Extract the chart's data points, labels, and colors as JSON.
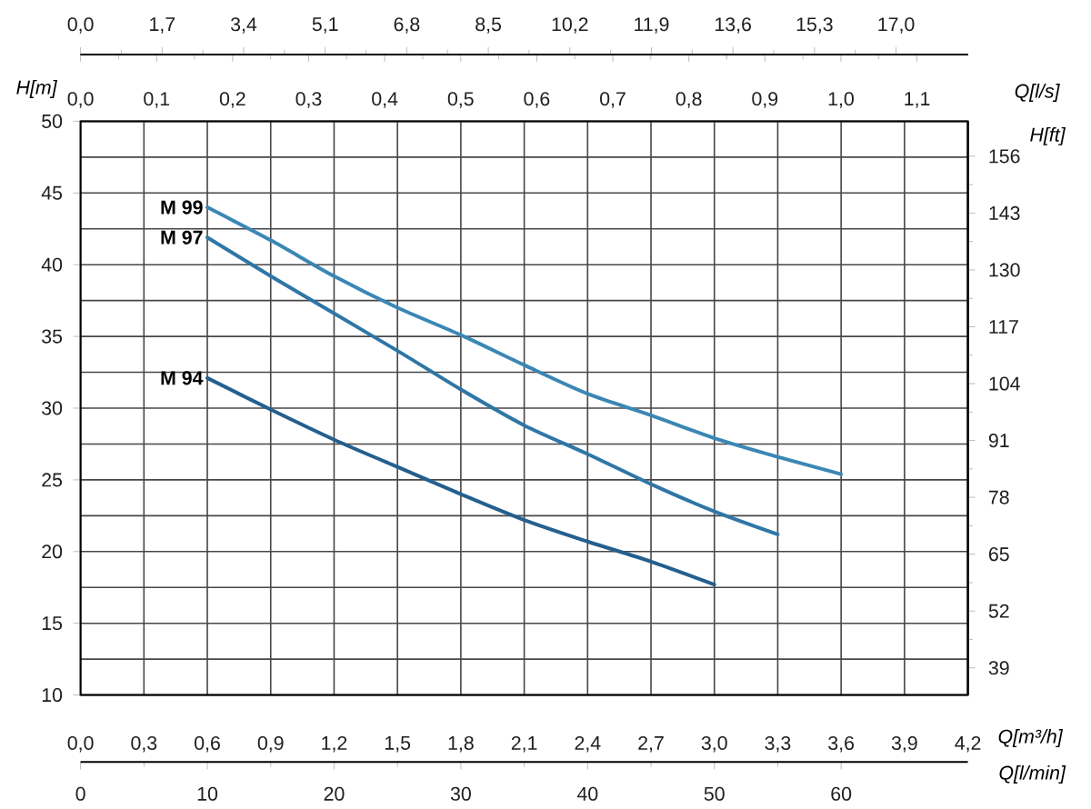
{
  "chart_data": {
    "type": "line",
    "xlabel": "Q[m³/h]",
    "ylabel": "H[m]",
    "y2label": "H[ft]",
    "x2label": "Q[l/s]",
    "xlim": [
      0,
      4.2
    ],
    "xticks": [
      {
        "value": 0,
        "label": "0,0"
      },
      {
        "value": 0.3,
        "label": "0,3"
      },
      {
        "value": 0.6,
        "label": "0,6"
      },
      {
        "value": 0.9,
        "label": "0,9"
      },
      {
        "value": 1.2,
        "label": "1,2"
      },
      {
        "value": 1.5,
        "label": "1,5"
      },
      {
        "value": 1.8,
        "label": "1,8"
      },
      {
        "value": 2.1,
        "label": "2,1"
      },
      {
        "value": 2.4,
        "label": "2,4"
      },
      {
        "value": 2.7,
        "label": "2,7"
      },
      {
        "value": 3.0,
        "label": "3,0"
      },
      {
        "value": 3.3,
        "label": "3,3"
      },
      {
        "value": 3.6,
        "label": "3,6"
      },
      {
        "value": 3.9,
        "label": "3,9"
      },
      {
        "value": 4.2,
        "label": "4,2"
      }
    ],
    "ylim": [
      10,
      50
    ],
    "yticks": [
      10,
      15,
      20,
      25,
      30,
      35,
      40,
      45,
      50
    ],
    "y2lim": [
      32.8,
      164.0
    ],
    "y2ticks": [
      39,
      52,
      65,
      78,
      91,
      104,
      117,
      130,
      143,
      156
    ],
    "x2lim": [
      0,
      1.167
    ],
    "x2ticks": [
      {
        "value": 0,
        "label": "0,0"
      },
      {
        "value": 0.1,
        "label": "0,1"
      },
      {
        "value": 0.2,
        "label": "0,2"
      },
      {
        "value": 0.3,
        "label": "0,3"
      },
      {
        "value": 0.4,
        "label": "0,4"
      },
      {
        "value": 0.5,
        "label": "0,5"
      },
      {
        "value": 0.6,
        "label": "0,6"
      },
      {
        "value": 0.7,
        "label": "0,7"
      },
      {
        "value": 0.8,
        "label": "0,8"
      },
      {
        "value": 0.9,
        "label": "0,9"
      },
      {
        "value": 1.0,
        "label": "1,0"
      },
      {
        "value": 1.1,
        "label": "1,1"
      }
    ],
    "annotations": [
      "0,0",
      "1,7",
      "3,4",
      "5,1",
      "6,8",
      "8,5",
      "10,2",
      "11,9",
      "13,6",
      "15,3",
      "17,0",
      "0",
      "10",
      "20",
      "30",
      "40",
      "50",
      "60",
      "Q[l/min]"
    ],
    "grid": true,
    "series": [
      {
        "name": "M 99",
        "color": "#3a87b5",
        "x": [
          0.6,
          0.9,
          1.2,
          1.5,
          1.8,
          2.1,
          2.4,
          2.7,
          3.0,
          3.3,
          3.6
        ],
        "values": [
          44.0,
          41.7,
          39.2,
          37.0,
          35.1,
          33.0,
          31.0,
          29.5,
          27.9,
          26.6,
          25.4
        ]
      },
      {
        "name": "M 97",
        "color": "#2f76a6",
        "x": [
          0.6,
          0.9,
          1.2,
          1.5,
          1.8,
          2.1,
          2.4,
          2.7,
          3.0,
          3.3
        ],
        "values": [
          41.9,
          39.2,
          36.6,
          34.0,
          31.3,
          28.8,
          26.8,
          24.7,
          22.8,
          21.2
        ]
      },
      {
        "name": "M 94",
        "color": "#245f8e",
        "x": [
          0.6,
          0.9,
          1.2,
          1.5,
          1.8,
          2.1,
          2.4,
          2.7,
          3.0
        ],
        "values": [
          32.1,
          29.9,
          27.8,
          25.9,
          24.0,
          22.2,
          20.7,
          19.3,
          17.7
        ]
      }
    ]
  }
}
